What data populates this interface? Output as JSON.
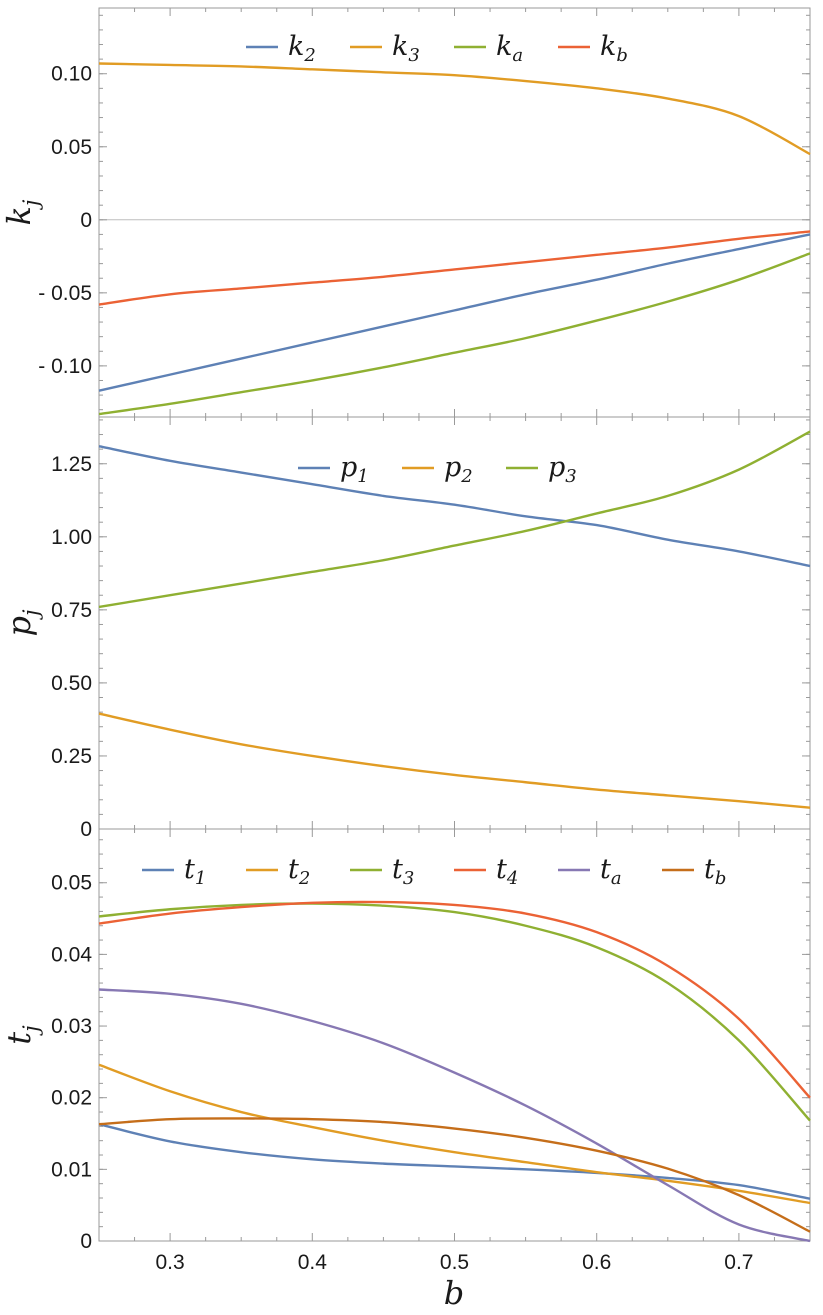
{
  "chart_data": [
    {
      "type": "line",
      "panel": "top",
      "ylabel_main": "k",
      "ylabel_sub": "j",
      "xlim": [
        0.25,
        0.75
      ],
      "ylim": [
        -0.135,
        0.145
      ],
      "yticks": [
        0.1,
        0.05,
        0,
        -0.05,
        -0.1
      ],
      "ytick_labels": [
        "0.10",
        "0.05",
        "0",
        "- 0.05",
        "- 0.10"
      ],
      "zero_line": true,
      "legend_position": "top-center",
      "x": [
        0.25,
        0.3,
        0.35,
        0.4,
        0.45,
        0.5,
        0.55,
        0.6,
        0.65,
        0.7,
        0.75
      ],
      "series": [
        {
          "name": "k",
          "sub": "2",
          "color": "#5E81B5",
          "values": [
            -0.117,
            -0.106,
            -0.095,
            -0.084,
            -0.073,
            -0.062,
            -0.051,
            -0.041,
            -0.03,
            -0.02,
            -0.01
          ]
        },
        {
          "name": "k",
          "sub": "3",
          "color": "#E19C24",
          "values": [
            0.107,
            0.106,
            0.105,
            0.103,
            0.101,
            0.099,
            0.095,
            0.09,
            0.083,
            0.071,
            0.045
          ]
        },
        {
          "name": "k",
          "sub": "a",
          "color": "#8FB032",
          "values": [
            -0.133,
            -0.126,
            -0.118,
            -0.11,
            -0.101,
            -0.091,
            -0.081,
            -0.069,
            -0.056,
            -0.041,
            -0.023
          ]
        },
        {
          "name": "k",
          "sub": "b",
          "color": "#EB6235",
          "values": [
            -0.058,
            -0.051,
            -0.047,
            -0.043,
            -0.039,
            -0.034,
            -0.029,
            -0.024,
            -0.019,
            -0.013,
            -0.008
          ]
        }
      ]
    },
    {
      "type": "line",
      "panel": "middle",
      "ylabel_main": "p",
      "ylabel_sub": "j",
      "xlim": [
        0.25,
        0.75
      ],
      "ylim": [
        0,
        1.41
      ],
      "yticks": [
        1.25,
        1.0,
        0.75,
        0.5,
        0.25,
        0
      ],
      "ytick_labels": [
        "1.25",
        "1.00",
        "0.75",
        "0.50",
        "0.25",
        "0"
      ],
      "zero_line": false,
      "legend_position": "top-center",
      "x": [
        0.25,
        0.3,
        0.35,
        0.4,
        0.45,
        0.5,
        0.55,
        0.6,
        0.65,
        0.7,
        0.75
      ],
      "series": [
        {
          "name": "p",
          "sub": "1",
          "color": "#5E81B5",
          "values": [
            1.31,
            1.26,
            1.22,
            1.18,
            1.14,
            1.11,
            1.07,
            1.04,
            0.99,
            0.95,
            0.9
          ]
        },
        {
          "name": "p",
          "sub": "2",
          "color": "#E19C24",
          "values": [
            0.395,
            0.34,
            0.29,
            0.25,
            0.215,
            0.185,
            0.16,
            0.135,
            0.115,
            0.095,
            0.073
          ]
        },
        {
          "name": "p",
          "sub": "3",
          "color": "#8FB032",
          "values": [
            0.76,
            0.8,
            0.84,
            0.88,
            0.92,
            0.97,
            1.02,
            1.08,
            1.14,
            1.23,
            1.36
          ]
        }
      ]
    },
    {
      "type": "line",
      "panel": "bottom",
      "ylabel_main": "t",
      "ylabel_sub": "j",
      "xlabel": "b",
      "xlim": [
        0.25,
        0.75
      ],
      "ylim": [
        0,
        0.0575
      ],
      "xticks": [
        0.3,
        0.4,
        0.5,
        0.6,
        0.7
      ],
      "xtick_labels": [
        "0.3",
        "0.4",
        "0.5",
        "0.6",
        "0.7"
      ],
      "yticks": [
        0.05,
        0.04,
        0.03,
        0.02,
        0.01,
        0
      ],
      "ytick_labels": [
        "0.05",
        "0.04",
        "0.03",
        "0.02",
        "0.01",
        "0"
      ],
      "zero_line": false,
      "legend_position": "top-center",
      "x": [
        0.25,
        0.3,
        0.35,
        0.4,
        0.45,
        0.5,
        0.55,
        0.6,
        0.65,
        0.7,
        0.75
      ],
      "series": [
        {
          "name": "t",
          "sub": "1",
          "color": "#5E81B5",
          "values": [
            0.0163,
            0.0139,
            0.0124,
            0.0114,
            0.0108,
            0.0104,
            0.01,
            0.0095,
            0.0088,
            0.0078,
            0.0059
          ]
        },
        {
          "name": "t",
          "sub": "2",
          "color": "#E19C24",
          "values": [
            0.0246,
            0.0209,
            0.018,
            0.0159,
            0.014,
            0.0124,
            0.011,
            0.0096,
            0.0084,
            0.007,
            0.0053
          ]
        },
        {
          "name": "t",
          "sub": "3",
          "color": "#8FB032",
          "values": [
            0.0453,
            0.0463,
            0.0469,
            0.0471,
            0.0468,
            0.0459,
            0.044,
            0.041,
            0.036,
            0.028,
            0.0168
          ]
        },
        {
          "name": "t",
          "sub": "4",
          "color": "#EB6235",
          "values": [
            0.0443,
            0.0457,
            0.0466,
            0.0472,
            0.0473,
            0.0469,
            0.0457,
            0.0431,
            0.0384,
            0.031,
            0.02
          ]
        },
        {
          "name": "t",
          "sub": "a",
          "color": "#8778B3",
          "values": [
            0.0351,
            0.0345,
            0.0331,
            0.0307,
            0.0276,
            0.0235,
            0.0189,
            0.0136,
            0.0078,
            0.0023,
            0.0
          ]
        },
        {
          "name": "t",
          "sub": "b",
          "color": "#C56E1A",
          "values": [
            0.0163,
            0.017,
            0.0171,
            0.017,
            0.0166,
            0.0157,
            0.0144,
            0.0126,
            0.0101,
            0.0064,
            0.0013
          ]
        }
      ]
    }
  ]
}
